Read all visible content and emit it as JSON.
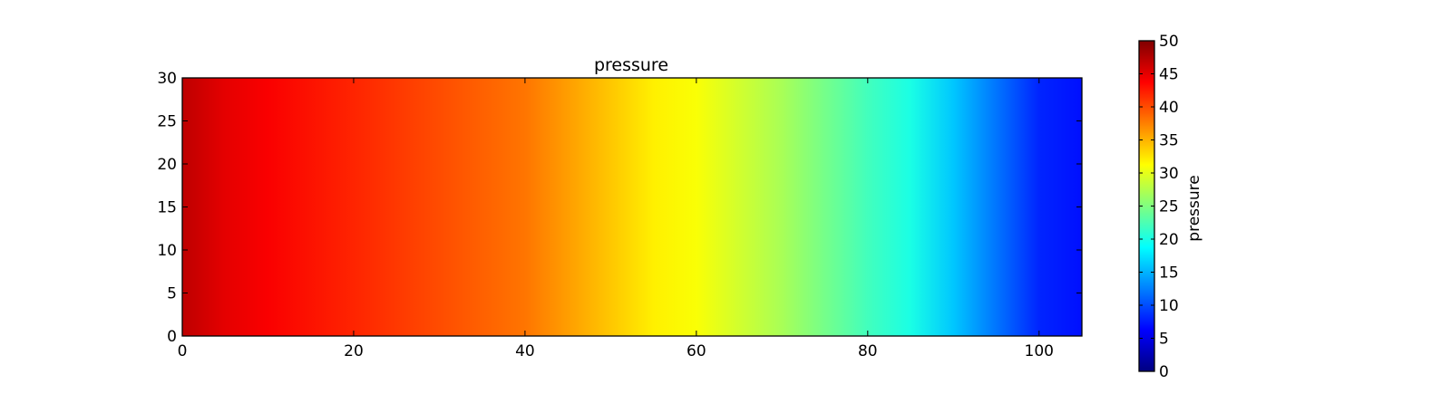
{
  "chart_data": {
    "type": "heatmap",
    "title": "pressure",
    "xlabel": "",
    "ylabel": "",
    "xlim": [
      0,
      105
    ],
    "ylim": [
      0,
      30
    ],
    "x_ticks": [
      "0",
      "20",
      "40",
      "60",
      "80",
      "100"
    ],
    "y_ticks": [
      "0",
      "5",
      "10",
      "15",
      "20",
      "25",
      "30"
    ],
    "colormap": "jet",
    "field_profile": {
      "x": [
        0,
        5,
        10,
        20,
        30,
        40,
        45,
        50,
        55,
        60,
        70,
        80,
        85,
        90,
        95,
        100,
        105
      ],
      "value": [
        47,
        45,
        44,
        42,
        40,
        38,
        36,
        34,
        32,
        31,
        27,
        22,
        20,
        16,
        12,
        8,
        7
      ]
    },
    "colorbar": {
      "label": "pressure",
      "range": [
        0,
        50
      ],
      "ticks": [
        "0",
        "5",
        "10",
        "15",
        "20",
        "25",
        "30",
        "35",
        "40",
        "45",
        "50"
      ]
    }
  }
}
